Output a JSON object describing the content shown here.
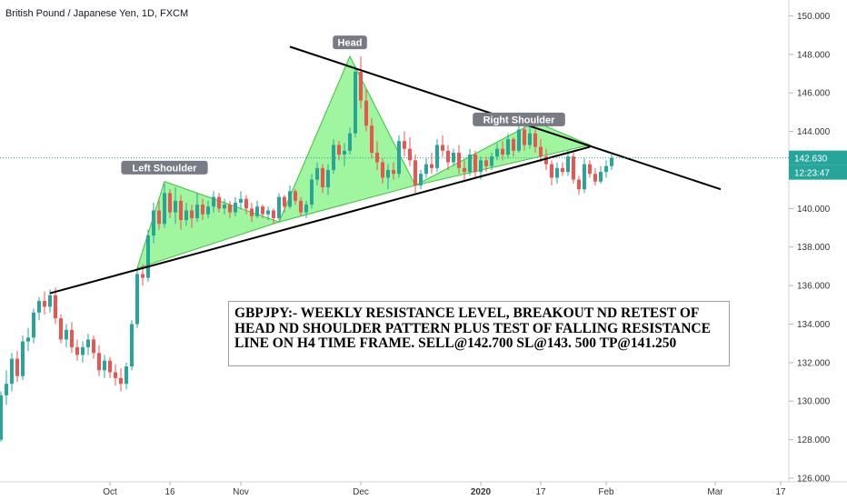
{
  "chart_title": "British Pound / Japanese Yen, 1D, FXCM",
  "note": "GBPJPY:- WEEKLY RESISTANCE LEVEL, BREAKOUT ND RETEST OF HEAD ND SHOULDER PATTERN PLUS TEST OF FALLING RESISTANCE LINE ON H4 TIME FRAME. SELL@142.700 SL@143. 500 TP@141.250",
  "colors": {
    "up": "#26a69a",
    "down": "#ef5350",
    "pattern_fill": "#8ef58e",
    "current_price_line": "#26a69a",
    "label_bg": "#787b86",
    "axis_bg": "#ffffff"
  },
  "chart_data": {
    "type": "candlestick",
    "instrument": "British Pound / Japanese Yen",
    "timeframe": "1D",
    "source": "FXCM",
    "y_axis": {
      "position": "right",
      "ylim": [
        126.0,
        150.4
      ],
      "ticks": [
        "126.000",
        "128.000",
        "130.000",
        "132.000",
        "134.000",
        "136.000",
        "138.000",
        "140.000",
        "142.000",
        "144.000",
        "146.000",
        "148.000",
        "150.000"
      ]
    },
    "x_axis": {
      "labels": [
        {
          "text": "Oct",
          "bar": 20
        },
        {
          "text": "16",
          "bar": 31
        },
        {
          "text": "Nov",
          "bar": 44
        },
        {
          "text": "Dec",
          "bar": 66
        },
        {
          "text": "2020",
          "bar": 88,
          "bold": true
        },
        {
          "text": "17",
          "bar": 99
        },
        {
          "text": "Feb",
          "bar": 111
        },
        {
          "text": "Mar",
          "bar": 131
        },
        {
          "text": "17",
          "bar": 143
        }
      ]
    },
    "current_price": {
      "value": 142.63,
      "label": "142.630",
      "countdown": "12:23:47"
    },
    "candles": [
      [
        128.0,
        130.5,
        127.9,
        130.3
      ],
      [
        130.3,
        131.6,
        129.8,
        130.9
      ],
      [
        130.9,
        132.5,
        130.5,
        132.2
      ],
      [
        132.2,
        132.6,
        131.0,
        131.3
      ],
      [
        131.3,
        133.4,
        131.1,
        133.1
      ],
      [
        133.1,
        133.8,
        132.6,
        133.3
      ],
      [
        133.3,
        134.8,
        133.0,
        134.6
      ],
      [
        134.6,
        135.4,
        134.2,
        135.2
      ],
      [
        135.2,
        135.7,
        134.5,
        134.9
      ],
      [
        134.9,
        135.8,
        134.6,
        135.5
      ],
      [
        135.5,
        135.9,
        134.0,
        134.3
      ],
      [
        134.3,
        134.5,
        133.0,
        133.2
      ],
      [
        133.2,
        134.0,
        132.8,
        133.7
      ],
      [
        133.7,
        134.1,
        132.5,
        132.8
      ],
      [
        132.8,
        133.2,
        132.1,
        132.4
      ],
      [
        132.4,
        133.1,
        132.0,
        132.8
      ],
      [
        132.8,
        133.5,
        132.4,
        133.2
      ],
      [
        133.2,
        133.4,
        132.2,
        132.5
      ],
      [
        132.5,
        132.9,
        131.3,
        131.6
      ],
      [
        131.6,
        132.4,
        131.2,
        132.1
      ],
      [
        132.1,
        132.3,
        131.2,
        131.5
      ],
      [
        131.5,
        131.9,
        130.8,
        131.2
      ],
      [
        131.2,
        131.7,
        130.5,
        130.9
      ],
      [
        130.9,
        132.0,
        130.6,
        131.8
      ],
      [
        131.8,
        134.2,
        131.6,
        134.0
      ],
      [
        134.0,
        136.9,
        133.8,
        136.6
      ],
      [
        136.6,
        137.1,
        136.0,
        136.4
      ],
      [
        136.4,
        138.9,
        136.2,
        138.6
      ],
      [
        138.6,
        140.3,
        138.2,
        139.9
      ],
      [
        139.9,
        140.4,
        138.9,
        139.2
      ],
      [
        139.2,
        141.3,
        139.0,
        140.8
      ],
      [
        140.8,
        141.0,
        139.5,
        139.8
      ],
      [
        139.8,
        141.1,
        139.2,
        140.4
      ],
      [
        140.4,
        140.7,
        138.9,
        139.4
      ],
      [
        139.4,
        140.3,
        139.1,
        139.9
      ],
      [
        139.9,
        140.2,
        139.0,
        139.5
      ],
      [
        139.5,
        140.8,
        139.3,
        140.2
      ],
      [
        140.2,
        140.5,
        139.4,
        139.7
      ],
      [
        139.7,
        140.4,
        139.5,
        140.1
      ],
      [
        140.1,
        140.9,
        139.8,
        140.6
      ],
      [
        140.6,
        140.8,
        139.8,
        140.0
      ],
      [
        140.0,
        140.5,
        139.7,
        140.2
      ],
      [
        140.2,
        140.4,
        139.5,
        139.8
      ],
      [
        139.8,
        140.6,
        139.6,
        140.3
      ],
      [
        140.3,
        140.9,
        140.0,
        140.5
      ],
      [
        140.5,
        140.7,
        139.7,
        140.0
      ],
      [
        140.0,
        140.3,
        139.3,
        139.6
      ],
      [
        139.6,
        140.4,
        139.5,
        140.1
      ],
      [
        140.1,
        140.2,
        139.5,
        139.7
      ],
      [
        139.7,
        140.1,
        139.4,
        139.9
      ],
      [
        139.9,
        140.0,
        139.2,
        139.5
      ],
      [
        139.5,
        140.8,
        139.4,
        140.6
      ],
      [
        140.6,
        140.7,
        139.8,
        140.1
      ],
      [
        140.1,
        141.2,
        140.0,
        140.9
      ],
      [
        140.9,
        141.0,
        140.2,
        140.4
      ],
      [
        140.4,
        140.6,
        139.6,
        139.8
      ],
      [
        139.8,
        140.4,
        139.5,
        140.2
      ],
      [
        140.2,
        141.8,
        140.0,
        141.5
      ],
      [
        141.5,
        142.4,
        141.2,
        142.1
      ],
      [
        142.1,
        142.3,
        140.8,
        141.1
      ],
      [
        141.1,
        142.3,
        140.7,
        142.0
      ],
      [
        142.0,
        143.6,
        141.8,
        143.3
      ],
      [
        143.3,
        143.5,
        142.5,
        142.8
      ],
      [
        142.8,
        143.4,
        142.2,
        143.0
      ],
      [
        143.0,
        144.2,
        142.8,
        143.9
      ],
      [
        143.9,
        147.4,
        143.7,
        147.1
      ],
      [
        147.1,
        147.9,
        145.2,
        145.6
      ],
      [
        145.6,
        146.2,
        144.0,
        144.3
      ],
      [
        144.3,
        144.7,
        142.6,
        142.9
      ],
      [
        142.9,
        143.5,
        142.0,
        142.4
      ],
      [
        142.4,
        142.6,
        141.3,
        141.6
      ],
      [
        141.6,
        142.3,
        141.0,
        142.0
      ],
      [
        142.0,
        142.4,
        141.5,
        141.8
      ],
      [
        141.8,
        143.8,
        141.6,
        143.5
      ],
      [
        143.5,
        144.0,
        142.7,
        143.1
      ],
      [
        143.1,
        143.7,
        142.2,
        142.5
      ],
      [
        142.5,
        142.8,
        140.8,
        141.2
      ],
      [
        141.2,
        142.0,
        141.0,
        141.8
      ],
      [
        141.8,
        142.6,
        141.6,
        142.3
      ],
      [
        142.3,
        142.9,
        141.8,
        142.1
      ],
      [
        142.1,
        143.6,
        141.9,
        143.3
      ],
      [
        143.3,
        143.8,
        142.7,
        143.0
      ],
      [
        143.0,
        143.3,
        142.0,
        142.4
      ],
      [
        142.4,
        143.1,
        142.2,
        142.9
      ],
      [
        142.9,
        143.3,
        141.8,
        142.1
      ],
      [
        142.1,
        142.5,
        141.5,
        141.9
      ],
      [
        141.9,
        143.1,
        141.7,
        142.8
      ],
      [
        142.8,
        143.0,
        141.6,
        141.9
      ],
      [
        141.9,
        142.7,
        141.5,
        142.5
      ],
      [
        142.5,
        142.7,
        141.9,
        142.2
      ],
      [
        142.2,
        142.9,
        142.0,
        142.7
      ],
      [
        142.7,
        143.4,
        142.5,
        143.1
      ],
      [
        143.1,
        143.5,
        142.5,
        142.8
      ],
      [
        142.8,
        143.9,
        142.6,
        143.6
      ],
      [
        143.6,
        143.7,
        142.7,
        143.0
      ],
      [
        143.0,
        144.4,
        142.9,
        144.1
      ],
      [
        144.1,
        144.5,
        143.0,
        143.3
      ],
      [
        143.3,
        144.2,
        143.1,
        143.9
      ],
      [
        143.9,
        144.1,
        142.9,
        143.2
      ],
      [
        143.2,
        143.6,
        142.4,
        142.7
      ],
      [
        142.7,
        143.1,
        142.0,
        142.3
      ],
      [
        142.3,
        142.5,
        141.2,
        141.6
      ],
      [
        141.6,
        142.4,
        141.3,
        142.1
      ],
      [
        142.1,
        142.4,
        141.7,
        141.9
      ],
      [
        141.9,
        143.0,
        141.7,
        142.7
      ],
      [
        142.7,
        142.9,
        141.3,
        141.5
      ],
      [
        141.5,
        141.7,
        140.7,
        141.0
      ],
      [
        141.0,
        142.6,
        140.8,
        142.3
      ],
      [
        142.3,
        142.5,
        141.6,
        141.8
      ],
      [
        141.8,
        142.1,
        141.2,
        141.4
      ],
      [
        141.4,
        142.2,
        141.3,
        141.9
      ],
      [
        141.9,
        142.5,
        141.6,
        142.2
      ],
      [
        142.2,
        142.8,
        142.0,
        142.63
      ]
    ],
    "candle_format": [
      "open",
      "high",
      "low",
      "close"
    ],
    "annotations": [
      {
        "type": "label",
        "text": "Head",
        "bar": 64,
        "price": 148.6
      },
      {
        "type": "label",
        "text": "Left Shoulder",
        "bar": 30,
        "price": 142.1
      },
      {
        "type": "label",
        "text": "Right Shoulder",
        "bar": 95,
        "price": 144.6
      }
    ],
    "trendlines": [
      {
        "name": "neckline",
        "from": {
          "bar": 9,
          "price": 135.6
        },
        "to": {
          "bar": 108,
          "price": 143.2
        }
      },
      {
        "name": "falling-resistance",
        "from": {
          "bar": 53,
          "price": 148.4
        },
        "to": {
          "bar": 132,
          "price": 141.0
        }
      }
    ],
    "pattern_triangles": [
      [
        {
          "bar": 25,
          "price": 136.9
        },
        {
          "bar": 30,
          "price": 141.4
        },
        {
          "bar": 51,
          "price": 139.3
        }
      ],
      [
        {
          "bar": 51,
          "price": 139.3
        },
        {
          "bar": 64,
          "price": 147.9
        },
        {
          "bar": 76,
          "price": 141.2
        }
      ],
      [
        {
          "bar": 76,
          "price": 141.2
        },
        {
          "bar": 98,
          "price": 144.5
        },
        {
          "bar": 108,
          "price": 143.3
        }
      ]
    ]
  }
}
